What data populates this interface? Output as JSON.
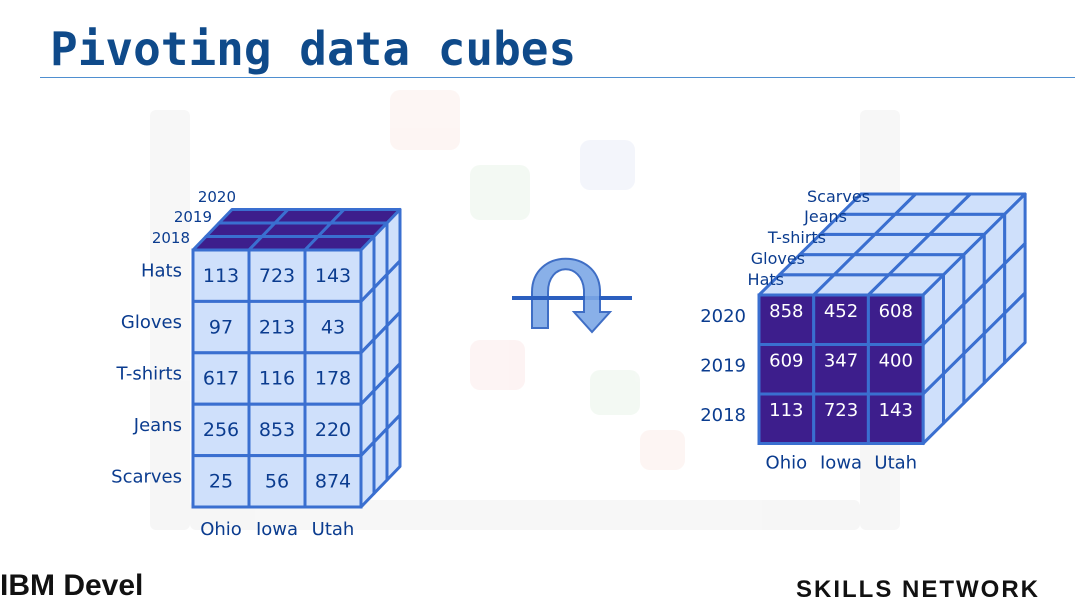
{
  "title": "Pivoting data cubes",
  "footer": {
    "brand_left": "IBM Devel",
    "brand_right": "SKILLS NETWORK"
  },
  "colors": {
    "title": "#0f4a8a",
    "cell_light": "#cfe0fb",
    "cell_dark": "#3d1e8c",
    "cube_edge": "#3a6fd0",
    "label": "#0b3c8f",
    "arrow": "#6f9fe0"
  },
  "icons": {
    "rotate": "rotate-arrow-icon"
  },
  "left_cube": {
    "year_labels": [
      "2020",
      "2019",
      "2018"
    ],
    "row_labels": [
      "Hats",
      "Gloves",
      "T-shirts",
      "Jeans",
      "Scarves"
    ],
    "col_labels": [
      "Ohio",
      "Iowa",
      "Utah"
    ],
    "values": [
      [
        "113",
        "723",
        "143"
      ],
      [
        "97",
        "213",
        "43"
      ],
      [
        "617",
        "116",
        "178"
      ],
      [
        "256",
        "853",
        "220"
      ],
      [
        "25",
        "56",
        "874"
      ]
    ]
  },
  "right_cube": {
    "product_labels": [
      "Scarves",
      "Jeans",
      "T-shirts",
      "Gloves",
      "Hats"
    ],
    "row_labels": [
      "2020",
      "2019",
      "2018"
    ],
    "col_labels": [
      "Ohio",
      "Iowa",
      "Utah"
    ],
    "values": [
      [
        "858",
        "452",
        "608"
      ],
      [
        "609",
        "347",
        "400"
      ],
      [
        "113",
        "723",
        "143"
      ]
    ]
  }
}
